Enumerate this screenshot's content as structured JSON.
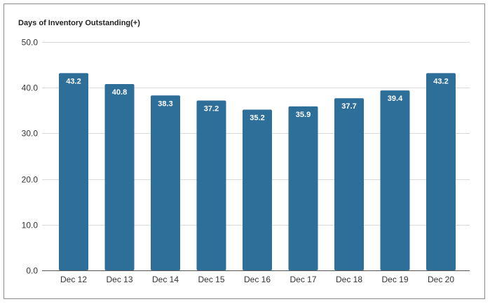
{
  "chart_data": {
    "type": "bar",
    "title": "Days of Inventory Outstanding(+)",
    "xlabel": "",
    "ylabel": "",
    "categories": [
      "Dec 12",
      "Dec 13",
      "Dec 14",
      "Dec 15",
      "Dec 16",
      "Dec 17",
      "Dec 18",
      "Dec 19",
      "Dec 20"
    ],
    "values": [
      43.2,
      40.8,
      38.3,
      37.2,
      35.2,
      35.9,
      37.7,
      39.4,
      43.2
    ],
    "value_labels": [
      "43.2",
      "40.8",
      "38.3",
      "37.2",
      "35.2",
      "35.9",
      "37.7",
      "39.4",
      "43.2"
    ],
    "ylim": [
      0,
      50
    ],
    "yticks": [
      0,
      10,
      20,
      30,
      40,
      50
    ],
    "ytick_labels": [
      "0.0",
      "10.0",
      "20.0",
      "30.0",
      "40.0",
      "50.0"
    ],
    "grid": true,
    "legend": "none",
    "colors": {
      "bar": "#2e6f9a",
      "grid": "#d9d9d9",
      "axis": "#555555",
      "label": "#ffffff"
    }
  }
}
